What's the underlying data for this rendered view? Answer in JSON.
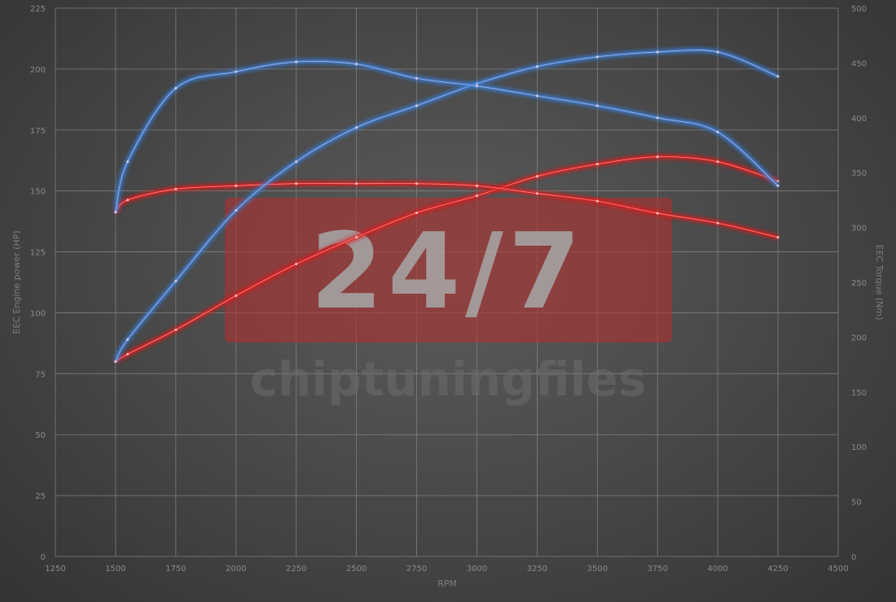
{
  "chart_data": {
    "type": "line",
    "title": "",
    "xlabel": "RPM",
    "ylabel_left": "EEC Engine power (HP)",
    "ylabel_right": "EEC Torque (Nm)",
    "xlim": [
      1250,
      4500
    ],
    "ylim_left": [
      0,
      225
    ],
    "ylim_right": [
      0,
      500
    ],
    "x_ticks": [
      1250,
      1500,
      1750,
      2000,
      2250,
      2500,
      2750,
      3000,
      3250,
      3500,
      3750,
      4000,
      4250,
      4500
    ],
    "y_ticks_left": [
      0,
      25,
      50,
      75,
      100,
      125,
      150,
      175,
      200,
      225
    ],
    "y_ticks_right": [
      0,
      50,
      100,
      150,
      200,
      250,
      300,
      350,
      400,
      450,
      500
    ],
    "grid": true,
    "series": [
      {
        "axis": "left",
        "color": "#e02020",
        "x": [
          1500,
          1550,
          1750,
          2000,
          2250,
          2500,
          2750,
          3000,
          3250,
          3500,
          3750,
          4000,
          4250
        ],
        "values": [
          80,
          83,
          93,
          107,
          120,
          131,
          141,
          148,
          156,
          161,
          164,
          162,
          154
        ]
      },
      {
        "axis": "right",
        "color": "#e02020",
        "x": [
          1500,
          1550,
          1750,
          2000,
          2250,
          2500,
          2750,
          3000,
          3250,
          3500,
          3750,
          4000,
          4250
        ],
        "values": [
          314,
          325,
          335,
          338,
          340,
          340,
          340,
          338,
          331,
          324,
          313,
          304,
          291
        ]
      },
      {
        "axis": "left",
        "color": "#3a7fd8",
        "x": [
          1500,
          1550,
          1750,
          2000,
          2250,
          2500,
          2750,
          3000,
          3250,
          3500,
          3750,
          4000,
          4250
        ],
        "values": [
          80,
          89,
          113,
          142,
          162,
          176,
          185,
          194,
          201,
          205,
          207,
          207,
          197
        ]
      },
      {
        "axis": "right",
        "color": "#3a7fd8",
        "x": [
          1500,
          1550,
          1750,
          2000,
          2250,
          2500,
          2750,
          3000,
          3250,
          3500,
          3750,
          4000,
          4250
        ],
        "values": [
          314,
          360,
          427,
          442,
          451,
          449,
          436,
          429,
          420,
          411,
          400,
          387,
          338
        ]
      }
    ]
  },
  "watermark": {
    "big": "24/7",
    "small": "chiptuningfiles",
    "color": "#b03030"
  }
}
